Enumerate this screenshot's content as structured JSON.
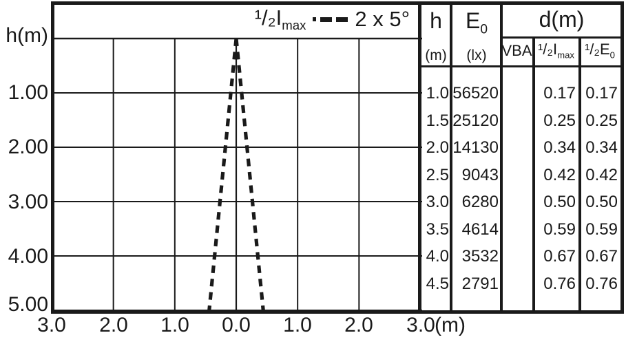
{
  "colors": {
    "ink": "#1a1a1a",
    "background": "#ffffff"
  },
  "figure": {
    "y_axis_title": "h(m)",
    "x_axis_unit": "(m)",
    "legend": {
      "series_prefix": "¹/₂",
      "series_symbol": "I",
      "series_sub": "max",
      "beam_label": "2 x 5°"
    }
  },
  "chart_data": {
    "type": "line",
    "title": "",
    "x_label": "(m)",
    "y_label": "h(m)",
    "x_range": [
      -3,
      3
    ],
    "y_range": [
      0,
      5
    ],
    "x_ticks": [
      "3.0",
      "2.0",
      "1.0",
      "0.0",
      "1.0",
      "2.0",
      "3.0"
    ],
    "y_ticks": [
      "1.00",
      "2.00",
      "3.00",
      "4.00",
      "5.00"
    ],
    "grid": true,
    "legend_position": "top-right",
    "legend_series_label": "1/2 Imax",
    "beam_angle_label": "2 x 5°",
    "beam_half_angle_deg": 5,
    "series": [
      {
        "name": "half-imax-beam-left-edge",
        "style": "dashed",
        "points": [
          [
            0,
            0
          ],
          [
            -0.44,
            5
          ]
        ]
      },
      {
        "name": "half-imax-beam-right-edge",
        "style": "dashed",
        "points": [
          [
            0,
            0
          ],
          [
            0.44,
            5
          ]
        ]
      },
      {
        "name": "optical-axis",
        "style": "solid",
        "points": [
          [
            0,
            0
          ],
          [
            0,
            5
          ]
        ]
      }
    ]
  },
  "table": {
    "col_h": {
      "label": "h",
      "unit": "(m)"
    },
    "col_e0": {
      "label": "E",
      "label_sub": "0",
      "unit": "(lx)"
    },
    "col_d": {
      "label": "d(m)",
      "sub_vba": "VBA",
      "sub_imax": {
        "prefix": "¹/₂",
        "sym": "I",
        "sub": "max"
      },
      "sub_e0": {
        "prefix": "¹/₂",
        "sym": "E",
        "sub": "0"
      }
    },
    "rows": [
      {
        "h": "1.0",
        "e0": "56520",
        "vba": "",
        "d_imax": "0.17",
        "d_e0": "0.17"
      },
      {
        "h": "1.5",
        "e0": "25120",
        "vba": "",
        "d_imax": "0.25",
        "d_e0": "0.25"
      },
      {
        "h": "2.0",
        "e0": "14130",
        "vba": "",
        "d_imax": "0.34",
        "d_e0": "0.34"
      },
      {
        "h": "2.5",
        "e0": "9043",
        "vba": "",
        "d_imax": "0.42",
        "d_e0": "0.42"
      },
      {
        "h": "3.0",
        "e0": "6280",
        "vba": "",
        "d_imax": "0.50",
        "d_e0": "0.50"
      },
      {
        "h": "3.5",
        "e0": "4614",
        "vba": "",
        "d_imax": "0.59",
        "d_e0": "0.59"
      },
      {
        "h": "4.0",
        "e0": "3532",
        "vba": "",
        "d_imax": "0.67",
        "d_e0": "0.67"
      },
      {
        "h": "4.5",
        "e0": "2791",
        "vba": "",
        "d_imax": "0.76",
        "d_e0": "0.76"
      }
    ]
  }
}
